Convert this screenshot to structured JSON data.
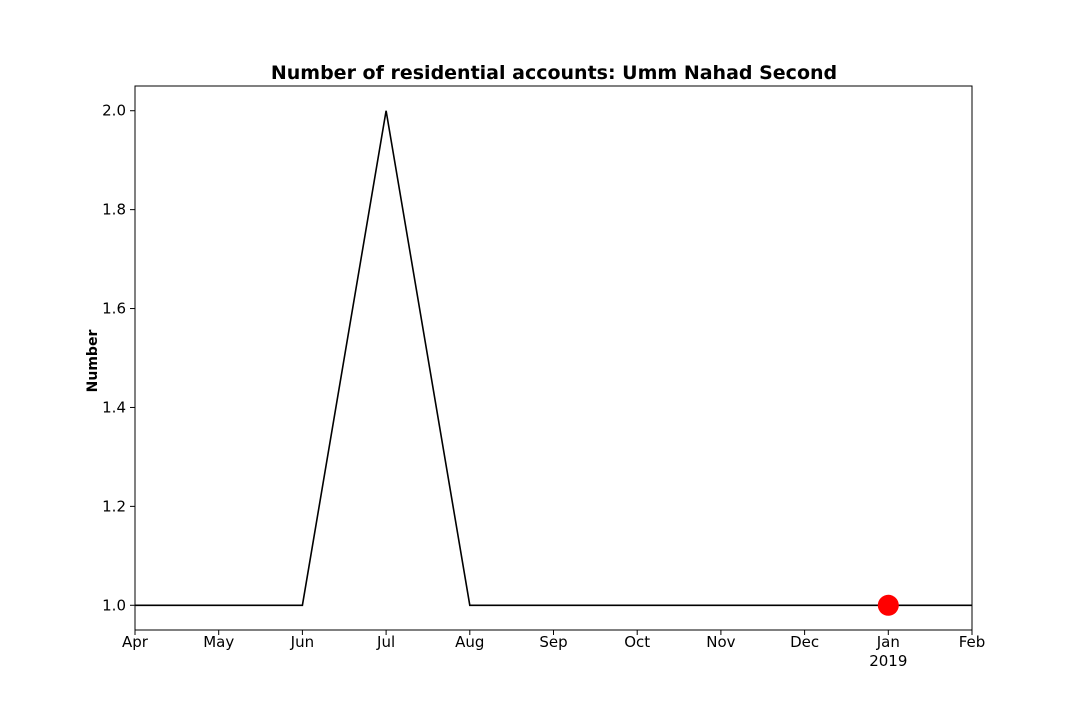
{
  "chart_data": {
    "type": "line",
    "title": "Number of residential accounts: Umm Nahad Second",
    "xlabel": "",
    "ylabel": "Number",
    "x": [
      "2018-04",
      "2018-05",
      "2018-06",
      "2018-07",
      "2018-08",
      "2018-09",
      "2018-10",
      "2018-11",
      "2018-12",
      "2019-01",
      "2019-02"
    ],
    "x_tick_labels": [
      "Apr",
      "May",
      "Jun",
      "Jul",
      "Aug",
      "Sep",
      "Oct",
      "Nov",
      "Dec",
      "Jan",
      "Feb"
    ],
    "x_year_label": "2019",
    "series": [
      {
        "values": [
          1.0,
          1.0,
          1.0,
          2.0,
          1.0,
          1.0,
          1.0,
          1.0,
          1.0,
          1.0,
          1.0
        ],
        "color": "#000000"
      }
    ],
    "highlight_point": {
      "x": "2019-01",
      "y": 1.0,
      "color": "#ff0000"
    },
    "ylim": [
      0.95,
      2.05
    ],
    "y_ticks": [
      "1.0",
      "1.2",
      "1.4",
      "1.6",
      "1.8",
      "2.0"
    ],
    "grid": false,
    "legend": "none"
  }
}
